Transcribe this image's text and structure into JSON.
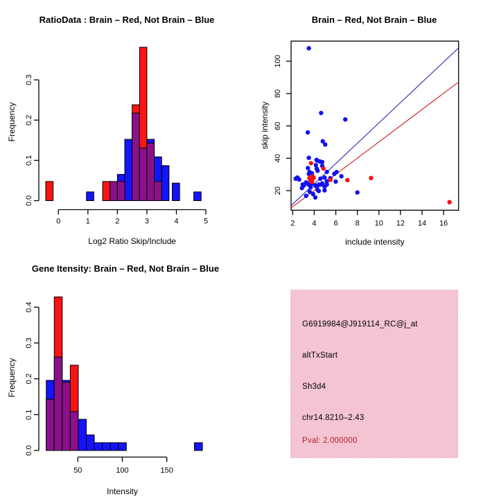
{
  "page": {
    "background": "#FFFFFF"
  },
  "colors": {
    "hist_blue": "#1414FA",
    "hist_red": "#FA1414",
    "overlap_purple": "#8B118B",
    "scatter_blue": "#1010F0",
    "scatter_red": "#F21212",
    "line_blue": "#2A2AB0",
    "line_red": "#CC2222",
    "info_bg_pink": "#FF9FBE",
    "pval_red": "#B22222",
    "axis_black": "#000000"
  },
  "chart_data": [
    {
      "id": "ratio_histogram",
      "type": "histogram_overlay",
      "title": "RatioData : Brain – Red, Not Brain – Blue",
      "xlabel": "Log2 Ratio Skip/Include",
      "ylabel": "Frequency",
      "x_ticks": [
        0,
        1,
        2,
        3,
        4,
        5
      ],
      "y_ticks": [
        0.0,
        0.1,
        0.2,
        0.3
      ],
      "y_tick_labels": [
        "0.0",
        "0.1",
        "0.2",
        "0.3"
      ],
      "xlim": [
        -0.6,
        5.1
      ],
      "ylim": [
        0,
        0.39
      ],
      "series_legend": [
        {
          "name": "Brain",
          "color_key": "hist_red"
        },
        {
          "name": "Not Brain",
          "color_key": "hist_blue"
        }
      ],
      "bars": [
        {
          "x0": -0.43,
          "x1": -0.18,
          "blue": 0,
          "red": 0.0476
        },
        {
          "x0": 0.95,
          "x1": 1.2,
          "blue": 0.0217,
          "red": 0
        },
        {
          "x0": 1.5,
          "x1": 1.75,
          "blue": 0,
          "red": 0.0476
        },
        {
          "x0": 1.75,
          "x1": 2.0,
          "blue": 0.0476,
          "red": 0.0476
        },
        {
          "x0": 2.0,
          "x1": 2.25,
          "blue": 0.0652,
          "red": 0.0476
        },
        {
          "x0": 2.25,
          "x1": 2.5,
          "blue": 0.1522,
          "red": 0
        },
        {
          "x0": 2.5,
          "x1": 2.75,
          "blue": 0.2174,
          "red": 0.2381
        },
        {
          "x0": 2.75,
          "x1": 3.0,
          "blue": 0.1304,
          "red": 0.381
        },
        {
          "x0": 3.0,
          "x1": 3.25,
          "blue": 0.1522,
          "red": 0.1429
        },
        {
          "x0": 3.25,
          "x1": 3.5,
          "blue": 0.1087,
          "red": 0.0476
        },
        {
          "x0": 3.5,
          "x1": 3.75,
          "blue": 0.087,
          "red": 0
        },
        {
          "x0": 3.86,
          "x1": 4.11,
          "blue": 0.0435,
          "red": 0
        },
        {
          "x0": 4.59,
          "x1": 4.84,
          "blue": 0.0217,
          "red": 0
        }
      ]
    },
    {
      "id": "intensity_scatter",
      "type": "scatter",
      "title": "Brain – Red, Not Brain – Blue",
      "xlabel": "include intensity",
      "ylabel": "skip intensity",
      "x_ticks": [
        2,
        4,
        6,
        8,
        10,
        12,
        14,
        16
      ],
      "y_ticks": [
        20,
        40,
        60,
        80,
        100
      ],
      "xlim": [
        1.85,
        17.4
      ],
      "ylim": [
        7.9,
        112.4
      ],
      "blue_points": [
        [
          3.5,
          108
        ],
        [
          4.64,
          68
        ],
        [
          6.88,
          64
        ],
        [
          3.4,
          56
        ],
        [
          4.79,
          50.5
        ],
        [
          5.02,
          48.5
        ],
        [
          3.5,
          40.3
        ],
        [
          4.28,
          38.6
        ],
        [
          4.74,
          37.7
        ],
        [
          4.21,
          39.0
        ],
        [
          4.53,
          38.0
        ],
        [
          4.15,
          35.8
        ],
        [
          4.74,
          35.3
        ],
        [
          4.23,
          33.6
        ],
        [
          5.17,
          31.6
        ],
        [
          3.57,
          31.5
        ],
        [
          3.41,
          34.0
        ],
        [
          6.07,
          31.5
        ],
        [
          6.52,
          28.9
        ],
        [
          5.86,
          30.4
        ],
        [
          2.28,
          27.4
        ],
        [
          2.6,
          26.9
        ],
        [
          2.44,
          28.1
        ],
        [
          3.5,
          30.4
        ],
        [
          3.78,
          30.7
        ],
        [
          4.31,
          32.3
        ],
        [
          4.57,
          27.4
        ],
        [
          4.96,
          28.1
        ],
        [
          5.99,
          25.6
        ],
        [
          5.17,
          25.8
        ],
        [
          5.49,
          27.7
        ],
        [
          2.93,
          23.8
        ],
        [
          3.25,
          25.1
        ],
        [
          3.03,
          23.2
        ],
        [
          3.46,
          23.8
        ],
        [
          3.78,
          24.5
        ],
        [
          4.1,
          23.2
        ],
        [
          4.42,
          23.8
        ],
        [
          4.74,
          24.5
        ],
        [
          4.96,
          22.5
        ],
        [
          4.21,
          22.5
        ],
        [
          4.64,
          23.8
        ],
        [
          5.17,
          23.8
        ],
        [
          3.67,
          22.1
        ],
        [
          2.86,
          21.6
        ],
        [
          4.31,
          20.5
        ],
        [
          3.89,
          17.9
        ],
        [
          4.1,
          15.8
        ],
        [
          3.25,
          16.8
        ],
        [
          4.96,
          20.2
        ],
        [
          4.42,
          19.8
        ],
        [
          8.0,
          18.9
        ],
        [
          3.57,
          19.4
        ]
      ],
      "red_points": [
        [
          3.7,
          37.0
        ],
        [
          4.85,
          33.7
        ],
        [
          3.55,
          27.8
        ],
        [
          3.75,
          27.0
        ],
        [
          3.95,
          27.9
        ],
        [
          3.65,
          26.1
        ],
        [
          3.85,
          28.8
        ],
        [
          3.8,
          25.4
        ],
        [
          5.5,
          26.7
        ],
        [
          7.08,
          26.5
        ],
        [
          9.27,
          27.8
        ],
        [
          16.55,
          12.9
        ]
      ],
      "lines": [
        {
          "name": "not-brain-fit-line",
          "color_key": "line_blue",
          "x1": 1.85,
          "y1": 10.7,
          "x2": 17.4,
          "y2": 108.3
        },
        {
          "name": "brain-fit-line",
          "color_key": "line_red",
          "x1": 1.85,
          "y1": 9.3,
          "x2": 17.4,
          "y2": 87.2
        }
      ]
    },
    {
      "id": "gene_intensity_histogram",
      "type": "histogram_overlay",
      "title": "Gene Itensity: Brain – Red, Not Brain – Blue",
      "xlabel": "Intensity",
      "ylabel": "Frequency",
      "x_ticks": [
        50,
        100,
        150
      ],
      "y_ticks": [
        0.0,
        0.1,
        0.2,
        0.3,
        0.4
      ],
      "y_tick_labels": [
        "0.0",
        "0.1",
        "0.2",
        "0.3",
        "0.4"
      ],
      "xlim": [
        10,
        195
      ],
      "ylim": [
        0,
        0.44
      ],
      "series_legend": [
        {
          "name": "Brain",
          "color_key": "hist_red"
        },
        {
          "name": "Not Brain",
          "color_key": "hist_blue"
        }
      ],
      "bars": [
        {
          "x0": 14.5,
          "x1": 23.5,
          "blue": 0.1957,
          "red": 0.1429
        },
        {
          "x0": 23.5,
          "x1": 32.5,
          "blue": 0.2609,
          "red": 0.4286
        },
        {
          "x0": 32.5,
          "x1": 41.5,
          "blue": 0.1957,
          "red": 0.1905
        },
        {
          "x0": 41.5,
          "x1": 50.5,
          "blue": 0.1087,
          "red": 0.2381
        },
        {
          "x0": 50.5,
          "x1": 59.5,
          "blue": 0.087,
          "red": 0
        },
        {
          "x0": 59.5,
          "x1": 68.5,
          "blue": 0.0435,
          "red": 0
        },
        {
          "x0": 68.5,
          "x1": 77.5,
          "blue": 0.0217,
          "red": 0
        },
        {
          "x0": 77.5,
          "x1": 86.5,
          "blue": 0.0217,
          "red": 0
        },
        {
          "x0": 86.5,
          "x1": 95.5,
          "blue": 0.0217,
          "red": 0
        },
        {
          "x0": 95.5,
          "x1": 104.5,
          "blue": 0.0217,
          "red": 0
        },
        {
          "x0": 181.0,
          "x1": 190.0,
          "blue": 0.0217,
          "red": 0
        }
      ]
    }
  ],
  "info_panel": {
    "lines": [
      {
        "text": "G6919984@J919114_RC@j_at",
        "color": "#000000"
      },
      {
        "text": "altTxStart",
        "color": "#000000"
      },
      {
        "text": "Sh3d4",
        "color": "#000000"
      },
      {
        "text": "chr14.8210–2.43",
        "color": "#000000"
      },
      {
        "text": "Pval: 2.000000",
        "color": "#B22222"
      }
    ]
  }
}
